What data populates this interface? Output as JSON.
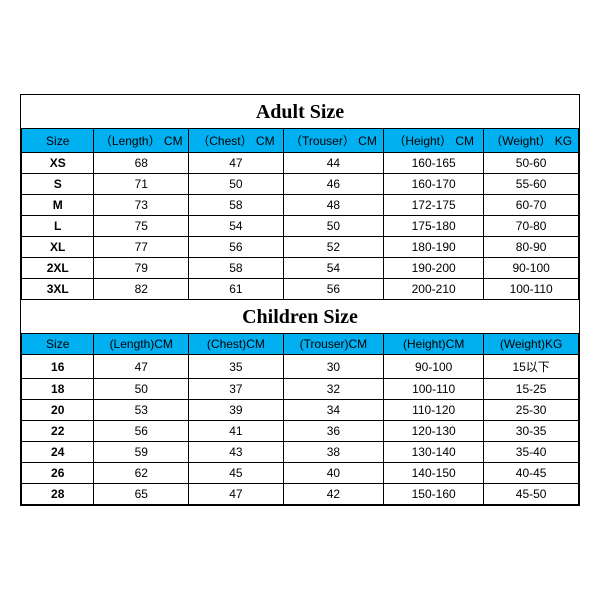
{
  "colors": {
    "header_bg": "#00b0f0",
    "border": "#000000",
    "background": "#ffffff",
    "text": "#000000"
  },
  "typography": {
    "title_fontsize": 20,
    "cell_fontsize": 12,
    "title_weight": "bold"
  },
  "adult": {
    "title": "Adult Size",
    "columns": [
      "Size",
      "（Length） CM",
      "（Chest） CM",
      "（Trouser） CM",
      "（Height） CM",
      "（Weight） KG"
    ],
    "rows": [
      [
        "XS",
        "68",
        "47",
        "44",
        "160-165",
        "50-60"
      ],
      [
        "S",
        "71",
        "50",
        "46",
        "160-170",
        "55-60"
      ],
      [
        "M",
        "73",
        "58",
        "48",
        "172-175",
        "60-70"
      ],
      [
        "L",
        "75",
        "54",
        "50",
        "175-180",
        "70-80"
      ],
      [
        "XL",
        "77",
        "56",
        "52",
        "180-190",
        "80-90"
      ],
      [
        "2XL",
        "79",
        "58",
        "54",
        "190-200",
        "90-100"
      ],
      [
        "3XL",
        "82",
        "61",
        "56",
        "200-210",
        "100-110"
      ]
    ]
  },
  "children": {
    "title": "Children Size",
    "columns": [
      "Size",
      "(Length)CM",
      "(Chest)CM",
      "(Trouser)CM",
      "(Height)CM",
      "(Weight)KG"
    ],
    "rows": [
      [
        "16",
        "47",
        "35",
        "30",
        "90-100",
        "15以下"
      ],
      [
        "18",
        "50",
        "37",
        "32",
        "100-110",
        "15-25"
      ],
      [
        "20",
        "53",
        "39",
        "34",
        "110-120",
        "25-30"
      ],
      [
        "22",
        "56",
        "41",
        "36",
        "120-130",
        "30-35"
      ],
      [
        "24",
        "59",
        "43",
        "38",
        "130-140",
        "35-40"
      ],
      [
        "26",
        "62",
        "45",
        "40",
        "140-150",
        "40-45"
      ],
      [
        "28",
        "65",
        "47",
        "42",
        "150-160",
        "45-50"
      ]
    ]
  }
}
